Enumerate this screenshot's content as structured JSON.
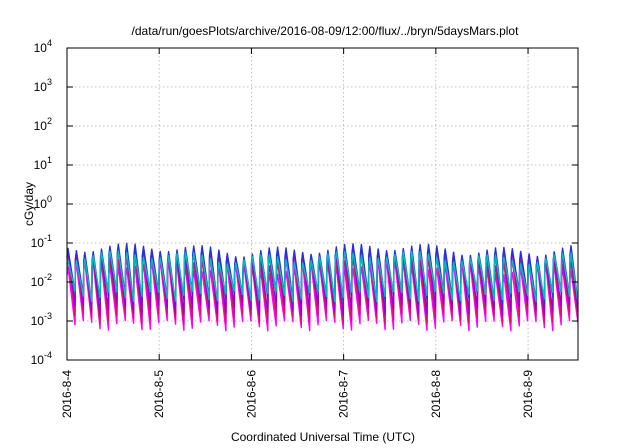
{
  "chart_data": {
    "type": "line",
    "title": "/data/run/goesPlots/archive/2016-08-09/12:00/flux/../bryn/5daysMars.plot",
    "xlabel": "Coordinated Universal Time (UTC)",
    "ylabel": "cGy/day",
    "yscale": "log",
    "ylim": [
      0.0001,
      10000
    ],
    "xlim": [
      "2016-08-04 00:00",
      "2016-08-09 13:00"
    ],
    "grid": true,
    "x_tick_labels": [
      "2016-8-4",
      "2016-8-5",
      "2016-8-6",
      "2016-8-7",
      "2016-8-8",
      "2016-8-9"
    ],
    "y_ticks": [
      {
        "base": "10",
        "exp": "-4"
      },
      {
        "base": "10",
        "exp": "-3"
      },
      {
        "base": "10",
        "exp": "-2"
      },
      {
        "base": "10",
        "exp": "-1"
      },
      {
        "base": "10",
        "exp": "0"
      },
      {
        "base": "10",
        "exp": "1"
      },
      {
        "base": "10",
        "exp": "2"
      },
      {
        "base": "10",
        "exp": "3"
      },
      {
        "base": "10",
        "exp": "4"
      }
    ],
    "cycles_per_day": 11,
    "series_pattern": [
      {
        "color": "#ff00ff",
        "peak": 0.025,
        "trough": 0.0008
      },
      {
        "color": "#dd1166",
        "peak": 0.04,
        "trough": 0.0012
      },
      {
        "color": "#9900cc",
        "peak": 0.055,
        "trough": 0.002
      },
      {
        "color": "#2233dd",
        "peak": 0.07,
        "trough": 0.004
      },
      {
        "color": "#00bbbb",
        "peak": 0.045,
        "trough": 0.0045
      }
    ]
  }
}
